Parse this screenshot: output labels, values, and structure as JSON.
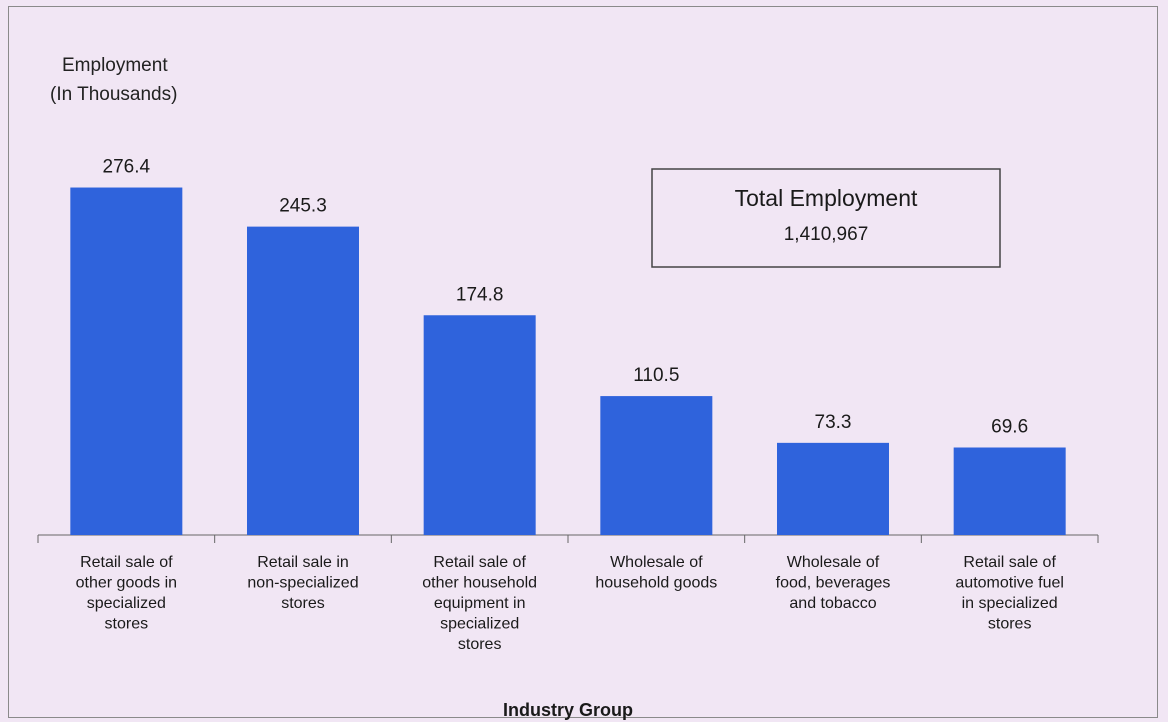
{
  "chart_data": {
    "type": "bar",
    "ylabel": [
      "Employment",
      "(In Thousands)"
    ],
    "xlabel": "Industry Group",
    "categories": [
      [
        "Retail sale of",
        "other goods in",
        "specialized",
        "stores"
      ],
      [
        "Retail sale in",
        "non-specialized",
        "stores"
      ],
      [
        "Retail sale of",
        "other household",
        "equipment in",
        "specialized",
        "stores"
      ],
      [
        "Wholesale of",
        "household goods"
      ],
      [
        "Wholesale of",
        "food, beverages",
        "and tobacco"
      ],
      [
        "Retail sale of",
        "automotive fuel",
        "in specialized",
        "stores"
      ]
    ],
    "values": [
      276.4,
      245.3,
      174.8,
      110.5,
      73.3,
      69.6
    ],
    "value_labels": [
      "276.4",
      "245.3",
      "174.8",
      "110.5",
      "73.3",
      "69.6"
    ],
    "bar_color": "#2f63dc",
    "ylim": [
      0,
      280
    ],
    "grid": false,
    "annotation": {
      "title": "Total Employment",
      "value": "1,410,967",
      "position": "top-right"
    }
  }
}
